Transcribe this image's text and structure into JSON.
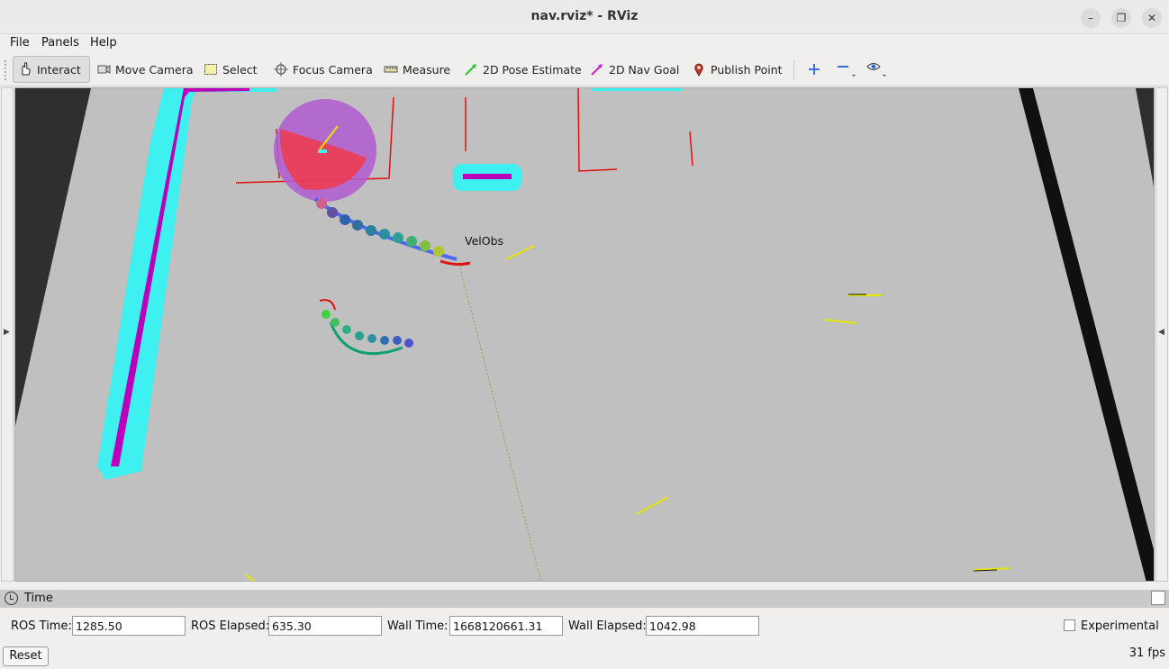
{
  "window": {
    "title": "nav.rviz* - RViz",
    "minimize_icon": "minimize-icon",
    "maximize_icon": "maximize-icon",
    "close_icon": "close-icon"
  },
  "menu": {
    "file": "File",
    "panels": "Panels",
    "help": "Help"
  },
  "toolbar": {
    "interact": "Interact",
    "move_camera": "Move Camera",
    "select": "Select",
    "focus_camera": "Focus Camera",
    "measure": "Measure",
    "pose_estimate": "2D Pose Estimate",
    "nav_goal": "2D Nav Goal",
    "publish_point": "Publish Point",
    "colors": {
      "pose_estimate": "#22cc22",
      "nav_goal": "#cc22cc",
      "publish_point": "#c0392b",
      "add": "#3a6fd8"
    }
  },
  "viewport": {
    "label_velobs": "VelObs",
    "colors": {
      "floor": "#c0c0c0",
      "outside": "#2f2f2f",
      "inflation": "#3ff0f0",
      "lethal": "#bb00bb",
      "laser": "#e01010",
      "arrow": "#e6e600"
    }
  },
  "time_panel": {
    "title": "Time",
    "ros_time_label": "ROS Time:",
    "ros_time_value": "1285.50",
    "ros_elapsed_label": "ROS Elapsed:",
    "ros_elapsed_value": "635.30",
    "wall_time_label": "Wall Time:",
    "wall_time_value": "1668120661.31",
    "wall_elapsed_label": "Wall Elapsed:",
    "wall_elapsed_value": "1042.98",
    "experimental_label": "Experimental",
    "experimental_checked": false
  },
  "footer": {
    "reset": "Reset",
    "fps": "31 fps"
  }
}
